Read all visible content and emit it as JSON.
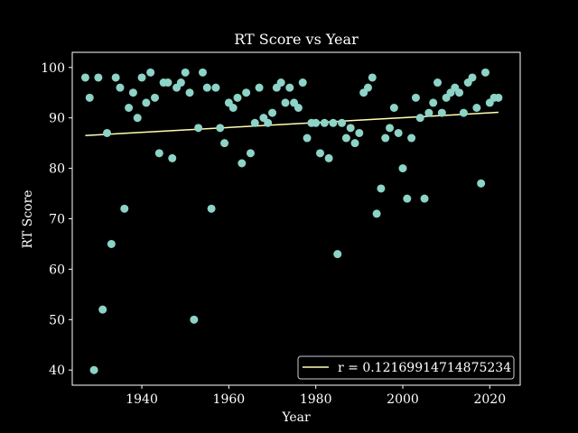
{
  "chart_data": {
    "type": "scatter",
    "title": "RT Score vs Year",
    "xlabel": "Year",
    "ylabel": "RT Score",
    "xlim": [
      1924,
      2027
    ],
    "ylim": [
      37,
      103
    ],
    "xticks": [
      1940,
      1960,
      1980,
      2000,
      2020
    ],
    "yticks": [
      40,
      50,
      60,
      70,
      80,
      90,
      100
    ],
    "grid": false,
    "legend": {
      "placement": "bottom-right",
      "entries": [
        "r = 0.12169914714875234"
      ]
    },
    "colors": {
      "background": "#000000",
      "points": "#8dd3c7",
      "trend": "#ffffb3",
      "axes": "#ffffff"
    },
    "trendline": {
      "x": [
        1927,
        2022
      ],
      "y": [
        86.5,
        91.1
      ]
    },
    "points": [
      [
        1927,
        98
      ],
      [
        1928,
        94
      ],
      [
        1929,
        40
      ],
      [
        1930,
        98
      ],
      [
        1931,
        52
      ],
      [
        1932,
        87
      ],
      [
        1933,
        65
      ],
      [
        1934,
        98
      ],
      [
        1935,
        96
      ],
      [
        1936,
        72
      ],
      [
        1937,
        92
      ],
      [
        1938,
        95
      ],
      [
        1939,
        90
      ],
      [
        1940,
        98
      ],
      [
        1941,
        93
      ],
      [
        1942,
        99
      ],
      [
        1943,
        94
      ],
      [
        1944,
        83
      ],
      [
        1945,
        97
      ],
      [
        1946,
        97
      ],
      [
        1947,
        82
      ],
      [
        1948,
        96
      ],
      [
        1949,
        97
      ],
      [
        1950,
        99
      ],
      [
        1951,
        95
      ],
      [
        1952,
        50
      ],
      [
        1953,
        88
      ],
      [
        1954,
        99
      ],
      [
        1955,
        96
      ],
      [
        1956,
        72
      ],
      [
        1957,
        96
      ],
      [
        1958,
        88
      ],
      [
        1959,
        85
      ],
      [
        1960,
        93
      ],
      [
        1961,
        92
      ],
      [
        1962,
        94
      ],
      [
        1963,
        81
      ],
      [
        1964,
        95
      ],
      [
        1965,
        83
      ],
      [
        1966,
        89
      ],
      [
        1967,
        96
      ],
      [
        1968,
        90
      ],
      [
        1969,
        89
      ],
      [
        1970,
        91
      ],
      [
        1971,
        96
      ],
      [
        1972,
        97
      ],
      [
        1973,
        93
      ],
      [
        1974,
        96
      ],
      [
        1975,
        93
      ],
      [
        1976,
        92
      ],
      [
        1977,
        97
      ],
      [
        1978,
        86
      ],
      [
        1979,
        89
      ],
      [
        1980,
        89
      ],
      [
        1981,
        83
      ],
      [
        1982,
        89
      ],
      [
        1983,
        82
      ],
      [
        1984,
        89
      ],
      [
        1985,
        63
      ],
      [
        1986,
        89
      ],
      [
        1987,
        86
      ],
      [
        1988,
        88
      ],
      [
        1989,
        85
      ],
      [
        1990,
        87
      ],
      [
        1991,
        95
      ],
      [
        1992,
        96
      ],
      [
        1993,
        98
      ],
      [
        1994,
        71
      ],
      [
        1995,
        76
      ],
      [
        1996,
        86
      ],
      [
        1997,
        88
      ],
      [
        1998,
        92
      ],
      [
        1999,
        87
      ],
      [
        2000,
        80
      ],
      [
        2001,
        74
      ],
      [
        2002,
        86
      ],
      [
        2003,
        94
      ],
      [
        2004,
        90
      ],
      [
        2005,
        74
      ],
      [
        2006,
        91
      ],
      [
        2007,
        93
      ],
      [
        2008,
        97
      ],
      [
        2009,
        91
      ],
      [
        2010,
        94
      ],
      [
        2011,
        95
      ],
      [
        2012,
        96
      ],
      [
        2013,
        95
      ],
      [
        2014,
        91
      ],
      [
        2015,
        97
      ],
      [
        2016,
        98
      ],
      [
        2017,
        92
      ],
      [
        2018,
        77
      ],
      [
        2019,
        99
      ],
      [
        2020,
        93
      ],
      [
        2021,
        94
      ],
      [
        2022,
        94
      ]
    ]
  }
}
